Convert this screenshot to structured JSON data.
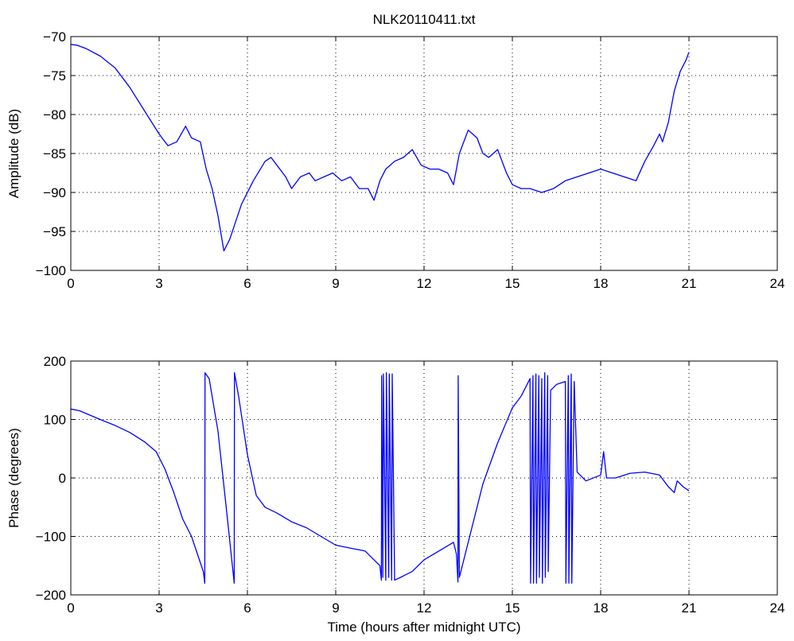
{
  "figure_title": "NLK20110411.txt",
  "line_color": "#0000ff",
  "chart_data": [
    {
      "type": "line",
      "title": "NLK20110411.txt",
      "xlabel": "",
      "ylabel": "Amplitude (dB)",
      "xlim": [
        0,
        24
      ],
      "ylim": [
        -100,
        -70
      ],
      "xticks": [
        "0",
        "3",
        "6",
        "9",
        "12",
        "15",
        "18",
        "21",
        "24"
      ],
      "yticks": [
        "-70",
        "-75",
        "-80",
        "-85",
        "-90",
        "-95",
        "-100"
      ],
      "grid": true,
      "series": [
        {
          "color": "#0000ff",
          "x": [
            0,
            0.2,
            0.5,
            1.0,
            1.5,
            2.0,
            2.5,
            3.0,
            3.3,
            3.6,
            3.9,
            4.1,
            4.4,
            4.6,
            4.8,
            5.0,
            5.2,
            5.4,
            5.8,
            6.2,
            6.6,
            6.8,
            7.0,
            7.3,
            7.5,
            7.8,
            8.1,
            8.3,
            8.6,
            8.9,
            9.2,
            9.5,
            9.8,
            10.1,
            10.3,
            10.5,
            10.7,
            11.0,
            11.3,
            11.6,
            11.9,
            12.2,
            12.5,
            12.8,
            13.0,
            13.2,
            13.5,
            13.8,
            14.0,
            14.2,
            14.5,
            14.8,
            15.0,
            15.3,
            15.6,
            16.0,
            16.4,
            16.8,
            17.2,
            17.6,
            18.0,
            18.4,
            18.8,
            19.2,
            19.5,
            19.8,
            20.0,
            20.1,
            20.3,
            20.5,
            20.7,
            20.9,
            21.0
          ],
          "y": [
            -71,
            -71.1,
            -71.5,
            -72.5,
            -74,
            -76.5,
            -79.5,
            -82.5,
            -84,
            -83.5,
            -81.5,
            -83,
            -83.5,
            -87,
            -89.5,
            -93,
            -97.5,
            -96,
            -91.5,
            -88.5,
            -86,
            -85.5,
            -86.5,
            -88,
            -89.5,
            -88,
            -87.5,
            -88.5,
            -88,
            -87.5,
            -88.5,
            -88,
            -89.5,
            -89.5,
            -91,
            -88.5,
            -87,
            -86,
            -85.5,
            -84.5,
            -86.5,
            -87,
            -87,
            -87.5,
            -89,
            -85,
            -82,
            -83,
            -85,
            -85.5,
            -84.5,
            -87.5,
            -89,
            -89.5,
            -89.5,
            -90,
            -89.5,
            -88.5,
            -88,
            -87.5,
            -87,
            -87.5,
            -88,
            -88.5,
            -86,
            -84,
            -82.5,
            -83.5,
            -81,
            -77,
            -74.5,
            -73,
            -72
          ]
        }
      ]
    },
    {
      "type": "line",
      "title": "",
      "xlabel": "Time (hours after midnight UTC)",
      "ylabel": "Phase (degrees)",
      "xlim": [
        0,
        24
      ],
      "ylim": [
        -200,
        200
      ],
      "xticks": [
        "0",
        "3",
        "6",
        "9",
        "12",
        "15",
        "18",
        "21",
        "24"
      ],
      "yticks": [
        "200",
        "100",
        "0",
        "-100",
        "-200"
      ],
      "grid": true,
      "series": [
        {
          "color": "#0000ff",
          "x": [
            0,
            0.3,
            1.0,
            1.5,
            2.0,
            2.5,
            2.9,
            3.2,
            3.5,
            3.8,
            4.1,
            4.3,
            4.5,
            4.55,
            4.56,
            4.7,
            5.0,
            5.3,
            5.55,
            5.56,
            5.7,
            6.0,
            6.3,
            6.6,
            7.0,
            7.5,
            8.0,
            8.5,
            9.0,
            9.5,
            10.0,
            10.5,
            10.55,
            10.56,
            10.6,
            10.62,
            10.7,
            10.72,
            10.8,
            10.82,
            10.9,
            10.92,
            11.0,
            11.2,
            11.6,
            12.0,
            12.5,
            13.0,
            13.1,
            13.15,
            13.16,
            13.2,
            13.5,
            14.0,
            14.5,
            15.0,
            15.3,
            15.5,
            15.6,
            15.62,
            15.7,
            15.72,
            15.8,
            15.82,
            15.9,
            15.92,
            16.0,
            16.02,
            16.1,
            16.12,
            16.2,
            16.22,
            16.3,
            16.5,
            16.8,
            16.82,
            16.9,
            16.92,
            17.0,
            17.02,
            17.1,
            17.2,
            17.5,
            18.0,
            18.1,
            18.2,
            18.5,
            19.0,
            19.5,
            20.0,
            20.3,
            20.5,
            20.6,
            20.8,
            21.0
          ],
          "y": [
            118,
            115,
            100,
            90,
            78,
            62,
            45,
            15,
            -25,
            -70,
            -100,
            -130,
            -160,
            -180,
            180,
            170,
            80,
            -60,
            -180,
            180,
            140,
            40,
            -30,
            -50,
            -60,
            -75,
            -85,
            -100,
            -115,
            -120,
            -125,
            -150,
            -175,
            175,
            -170,
            178,
            -175,
            180,
            -170,
            178,
            -175,
            178,
            -175,
            -170,
            -160,
            -140,
            -125,
            -110,
            -130,
            -178,
            175,
            -170,
            -110,
            -10,
            60,
            120,
            140,
            160,
            170,
            -180,
            175,
            -180,
            178,
            -180,
            175,
            -170,
            170,
            -180,
            180,
            -170,
            175,
            -160,
            150,
            160,
            165,
            -180,
            175,
            -180,
            178,
            -180,
            165,
            10,
            -5,
            5,
            45,
            0,
            0,
            8,
            10,
            5,
            -15,
            -25,
            -5,
            -15,
            -22
          ]
        }
      ]
    }
  ]
}
